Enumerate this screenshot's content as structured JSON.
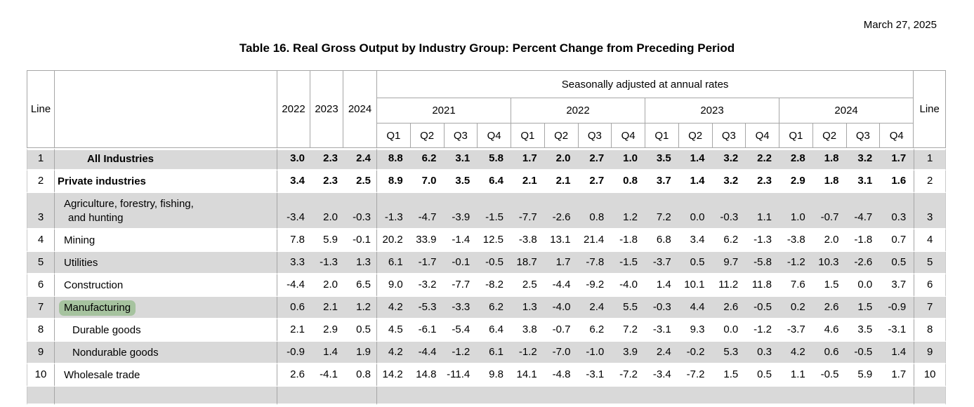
{
  "page": {
    "date": "March 27, 2025",
    "title": "Table 16. Real Gross Output by Industry Group: Percent Change from Preceding Period"
  },
  "colors": {
    "row_shade": "#d9d9d9",
    "highlight_green": "#a6c39f",
    "grid_line": "#a6a6a6"
  },
  "table": {
    "header": {
      "line_label": "Line",
      "annual_years": [
        "2022",
        "2023",
        "2024"
      ],
      "sa_label": "Seasonally adjusted at annual rates",
      "quarter_years": [
        "2021",
        "2022",
        "2023",
        "2024"
      ],
      "quarter_labels": [
        "Q1",
        "Q2",
        "Q3",
        "Q4"
      ]
    },
    "rows": [
      {
        "line": "1",
        "name": "All Industries",
        "name2": "",
        "indent": 3,
        "bold": true,
        "shaded": true,
        "highlight": false,
        "partial": false,
        "annual": [
          "3.0",
          "2.3",
          "2.4"
        ],
        "quarters": [
          "8.8",
          "6.2",
          "3.1",
          "5.8",
          "1.7",
          "2.0",
          "2.7",
          "1.0",
          "3.5",
          "1.4",
          "3.2",
          "2.2",
          "2.8",
          "1.8",
          "3.2",
          "1.7"
        ]
      },
      {
        "line": "2",
        "name": "Private industries",
        "name2": "",
        "indent": 0,
        "bold": true,
        "shaded": false,
        "highlight": false,
        "partial": false,
        "annual": [
          "3.4",
          "2.3",
          "2.5"
        ],
        "quarters": [
          "8.9",
          "7.0",
          "3.5",
          "6.4",
          "2.1",
          "2.1",
          "2.7",
          "0.8",
          "3.7",
          "1.4",
          "3.2",
          "2.3",
          "2.9",
          "1.8",
          "3.1",
          "1.6"
        ]
      },
      {
        "line": "3",
        "name": "Agriculture, forestry, fishing,",
        "name2": "and hunting",
        "indent": 1,
        "bold": false,
        "shaded": true,
        "highlight": false,
        "partial": false,
        "annual": [
          "-3.4",
          "2.0",
          "-0.3"
        ],
        "quarters": [
          "-1.3",
          "-4.7",
          "-3.9",
          "-1.5",
          "-7.7",
          "-2.6",
          "0.8",
          "1.2",
          "7.2",
          "0.0",
          "-0.3",
          "1.1",
          "1.0",
          "-0.7",
          "-4.7",
          "0.3"
        ]
      },
      {
        "line": "4",
        "name": "Mining",
        "name2": "",
        "indent": 1,
        "bold": false,
        "shaded": false,
        "highlight": false,
        "partial": false,
        "annual": [
          "7.8",
          "5.9",
          "-0.1"
        ],
        "quarters": [
          "20.2",
          "33.9",
          "-1.4",
          "12.5",
          "-3.8",
          "13.1",
          "21.4",
          "-1.8",
          "6.8",
          "3.4",
          "6.2",
          "-1.3",
          "-3.8",
          "2.0",
          "-1.8",
          "0.7"
        ]
      },
      {
        "line": "5",
        "name": "Utilities",
        "name2": "",
        "indent": 1,
        "bold": false,
        "shaded": true,
        "highlight": false,
        "partial": false,
        "annual": [
          "3.3",
          "-1.3",
          "1.3"
        ],
        "quarters": [
          "6.1",
          "-1.7",
          "-0.1",
          "-0.5",
          "18.7",
          "1.7",
          "-7.8",
          "-1.5",
          "-3.7",
          "0.5",
          "9.7",
          "-5.8",
          "-1.2",
          "10.3",
          "-2.6",
          "0.5"
        ]
      },
      {
        "line": "6",
        "name": "Construction",
        "name2": "",
        "indent": 1,
        "bold": false,
        "shaded": false,
        "highlight": false,
        "partial": false,
        "annual": [
          "-4.4",
          "2.0",
          "6.5"
        ],
        "quarters": [
          "9.0",
          "-3.2",
          "-7.7",
          "-8.2",
          "2.5",
          "-4.4",
          "-9.2",
          "-4.0",
          "1.4",
          "10.1",
          "11.2",
          "11.8",
          "7.6",
          "1.5",
          "0.0",
          "3.7"
        ]
      },
      {
        "line": "7",
        "name": "Manufacturing",
        "name2": "",
        "indent": 1,
        "bold": false,
        "shaded": true,
        "highlight": true,
        "partial": false,
        "annual": [
          "0.6",
          "2.1",
          "1.2"
        ],
        "quarters": [
          "4.2",
          "-5.3",
          "-3.3",
          "6.2",
          "1.3",
          "-4.0",
          "2.4",
          "5.5",
          "-0.3",
          "4.4",
          "2.6",
          "-0.5",
          "0.2",
          "2.6",
          "1.5",
          "-0.9"
        ]
      },
      {
        "line": "8",
        "name": "Durable goods",
        "name2": "",
        "indent": 2,
        "bold": false,
        "shaded": false,
        "highlight": false,
        "partial": false,
        "annual": [
          "2.1",
          "2.9",
          "0.5"
        ],
        "quarters": [
          "4.5",
          "-6.1",
          "-5.4",
          "6.4",
          "3.8",
          "-0.7",
          "6.2",
          "7.2",
          "-3.1",
          "9.3",
          "0.0",
          "-1.2",
          "-3.7",
          "4.6",
          "3.5",
          "-3.1"
        ]
      },
      {
        "line": "9",
        "name": "Nondurable goods",
        "name2": "",
        "indent": 2,
        "bold": false,
        "shaded": true,
        "highlight": false,
        "partial": false,
        "annual": [
          "-0.9",
          "1.4",
          "1.9"
        ],
        "quarters": [
          "4.2",
          "-4.4",
          "-1.2",
          "6.1",
          "-1.2",
          "-7.0",
          "-1.0",
          "3.9",
          "2.4",
          "-0.2",
          "5.3",
          "0.3",
          "4.2",
          "0.6",
          "-0.5",
          "1.4"
        ]
      },
      {
        "line": "10",
        "name": "Wholesale trade",
        "name2": "",
        "indent": 1,
        "bold": false,
        "shaded": false,
        "highlight": false,
        "partial": false,
        "annual": [
          "2.6",
          "-4.1",
          "0.8"
        ],
        "quarters": [
          "14.2",
          "14.8",
          "-11.4",
          "9.8",
          "14.1",
          "-4.8",
          "-3.1",
          "-7.2",
          "-3.4",
          "-7.2",
          "1.5",
          "0.5",
          "1.1",
          "-0.5",
          "5.9",
          "1.7"
        ]
      },
      {
        "line": "",
        "name": "",
        "name2": "",
        "indent": 1,
        "bold": false,
        "shaded": true,
        "highlight": false,
        "partial": true,
        "annual": [
          "",
          "",
          ""
        ],
        "quarters": [
          "",
          "",
          "",
          "",
          "",
          "",
          "",
          "",
          "",
          "",
          "",
          "",
          "",
          "",
          "",
          ""
        ]
      }
    ]
  }
}
